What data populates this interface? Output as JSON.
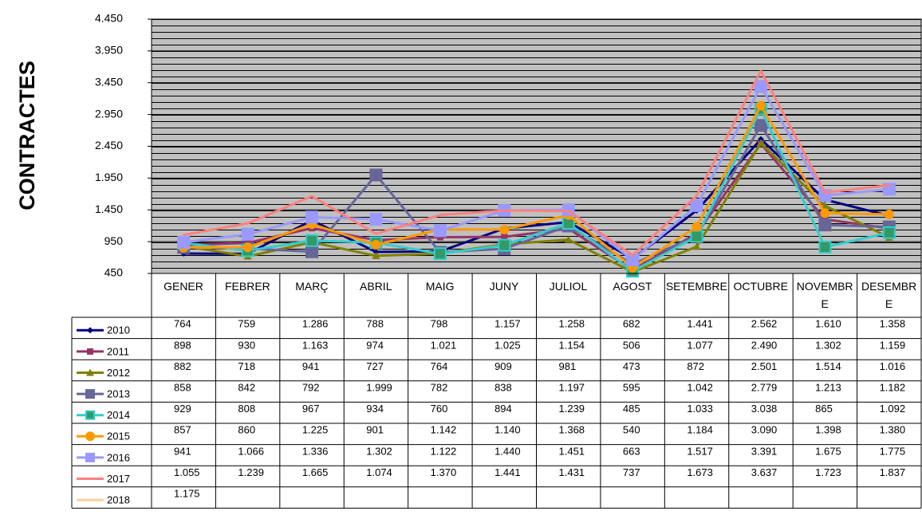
{
  "chart_data": {
    "type": "line",
    "y_label": "CONTRACTES",
    "categories": [
      "GENER",
      "FEBRER",
      "MARÇ",
      "ABRIL",
      "MAIG",
      "JUNY",
      "JULIOL",
      "AGOST",
      "SETEMBRE",
      "OCTUBRE",
      "NOVEMBRE",
      "DESEMBRE"
    ],
    "ylim": [
      450,
      4450
    ],
    "yticks": [
      450,
      950,
      {
        "value": 1450,
        "label": "1.450"
      },
      {
        "value": 1950,
        "label": "1.950"
      },
      {
        "value": 2450,
        "label": "2.450"
      },
      {
        "value": 2950,
        "label": "2.950"
      },
      {
        "value": 3450,
        "label": "3.450"
      },
      {
        "value": 3950,
        "label": "3.950"
      },
      {
        "value": 4450,
        "label": "4.450"
      }
    ],
    "grid": true,
    "series": [
      {
        "name": "2010",
        "color": "#000080",
        "marker": "diamond",
        "values": [
          764,
          759,
          1286,
          788,
          798,
          1157,
          1258,
          682,
          1441,
          2562,
          1610,
          1358
        ],
        "value_labels": [
          "764",
          "759",
          "1.286",
          "788",
          "798",
          "1.157",
          "1.258",
          "682",
          "1.441",
          "2.562",
          "1.610",
          "1.358"
        ]
      },
      {
        "name": "2011",
        "color": "#993366",
        "marker": "square",
        "values": [
          898,
          930,
          1163,
          974,
          1021,
          1025,
          1154,
          506,
          1077,
          2490,
          1302,
          1159
        ],
        "value_labels": [
          "898",
          "930",
          "1.163",
          "974",
          "1.021",
          "1.025",
          "1.154",
          "506",
          "1.077",
          "2.490",
          "1.302",
          "1.159"
        ]
      },
      {
        "name": "2012",
        "color": "#808000",
        "marker": "triangle",
        "values": [
          882,
          718,
          941,
          727,
          764,
          909,
          981,
          473,
          872,
          2501,
          1514,
          1016
        ],
        "value_labels": [
          "882",
          "718",
          "941",
          "727",
          "764",
          "909",
          "981",
          "473",
          "872",
          "2.501",
          "1.514",
          "1.016"
        ]
      },
      {
        "name": "2013",
        "color": "#666699",
        "marker": "bigsquare",
        "values": [
          858,
          842,
          792,
          1999,
          782,
          838,
          1197,
          595,
          1042,
          2779,
          1213,
          1182
        ],
        "value_labels": [
          "858",
          "842",
          "792",
          "1.999",
          "782",
          "838",
          "1.197",
          "595",
          "1.042",
          "2.779",
          "1.213",
          "1.182"
        ]
      },
      {
        "name": "2014",
        "color": "#33cccc",
        "marker": "star",
        "values": [
          929,
          808,
          967,
          934,
          760,
          894,
          1239,
          485,
          1033,
          3038,
          865,
          1092
        ],
        "value_labels": [
          "929",
          "808",
          "967",
          "934",
          "760",
          "894",
          "1.239",
          "485",
          "1.033",
          "3.038",
          "865",
          "1.092"
        ]
      },
      {
        "name": "2015",
        "color": "#ff9900",
        "marker": "circle",
        "values": [
          857,
          860,
          1225,
          901,
          1142,
          1140,
          1368,
          540,
          1184,
          3090,
          1398,
          1380
        ],
        "value_labels": [
          "857",
          "860",
          "1.225",
          "901",
          "1.142",
          "1.140",
          "1.368",
          "540",
          "1.184",
          "3.090",
          "1.398",
          "1.380"
        ]
      },
      {
        "name": "2016",
        "color": "#9999ff",
        "marker": "bigsquare",
        "values": [
          941,
          1066,
          1336,
          1302,
          1122,
          1440,
          1451,
          663,
          1517,
          3391,
          1675,
          1775
        ],
        "value_labels": [
          "941",
          "1.066",
          "1.336",
          "1.302",
          "1.122",
          "1.440",
          "1.451",
          "663",
          "1.517",
          "3.391",
          "1.675",
          "1.775"
        ]
      },
      {
        "name": "2017",
        "color": "#ff8080",
        "marker": "none",
        "values": [
          1055,
          1239,
          1665,
          1074,
          1370,
          1441,
          1431,
          737,
          1673,
          3637,
          1723,
          1837
        ],
        "value_labels": [
          "1.055",
          "1.239",
          "1.665",
          "1.074",
          "1.370",
          "1.441",
          "1.431",
          "737",
          "1.673",
          "3.637",
          "1.723",
          "1.837"
        ]
      },
      {
        "name": "2018",
        "color": "#ffcc99",
        "marker": "none",
        "values": [
          1175,
          null,
          null,
          null,
          null,
          null,
          null,
          null,
          null,
          null,
          null,
          null
        ],
        "value_labels": [
          "1.175",
          null,
          null,
          null,
          null,
          null,
          null,
          null,
          null,
          null,
          null,
          null
        ]
      }
    ]
  }
}
